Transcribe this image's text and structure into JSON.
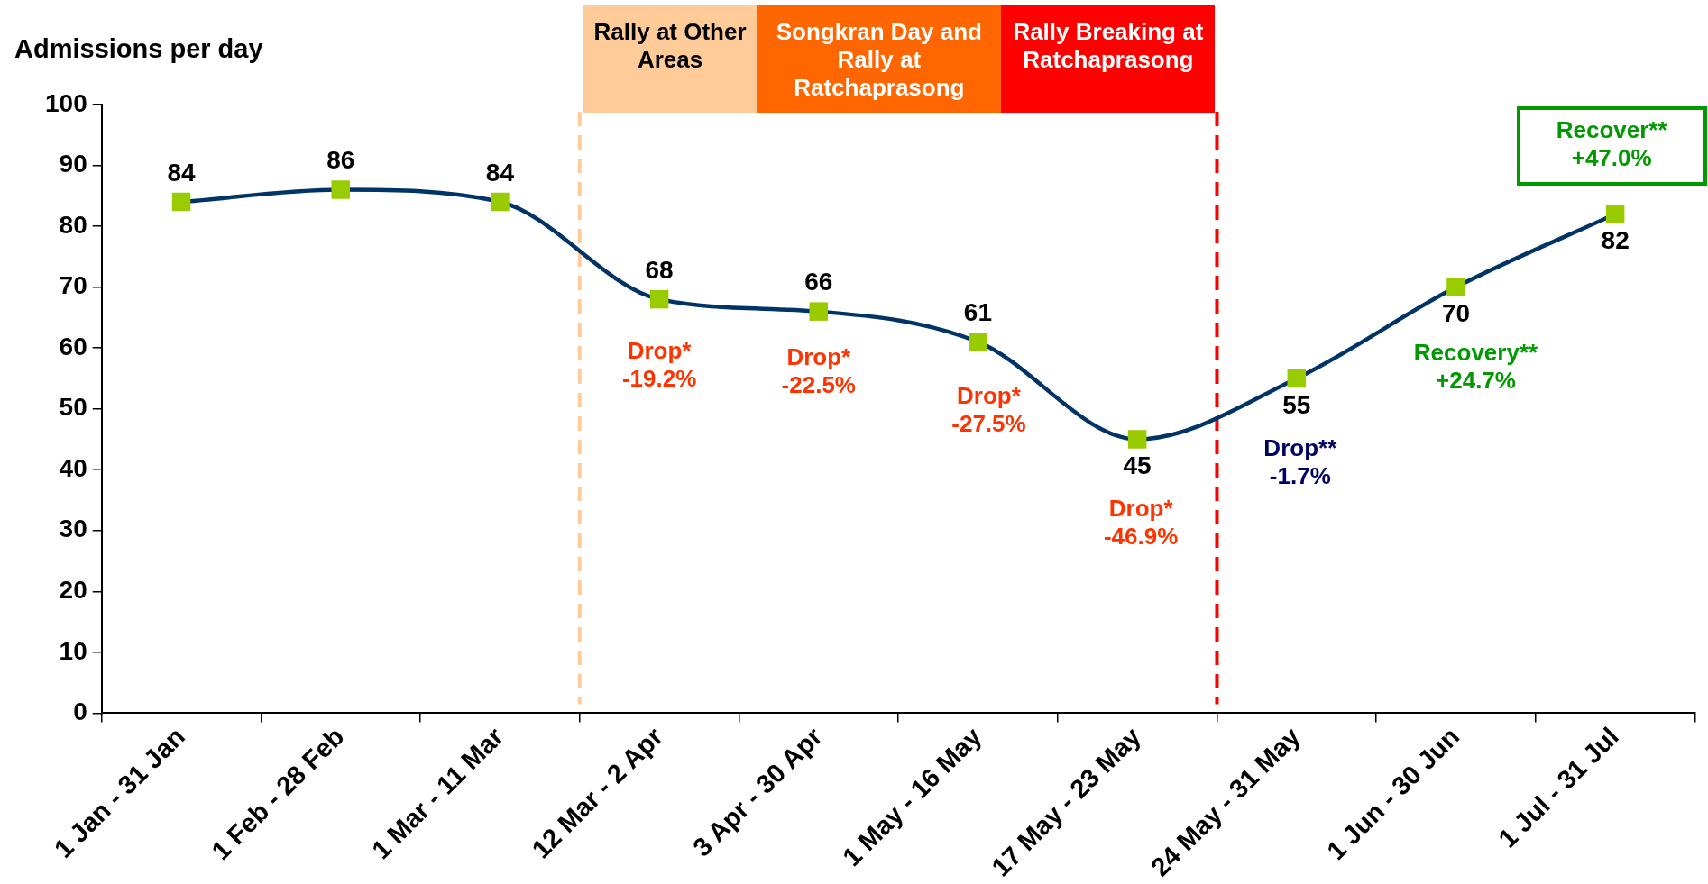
{
  "chart_data": {
    "type": "line",
    "ylabel": "Admissions per day",
    "categories": [
      "1 Jan - 31 Jan",
      "1 Feb - 28 Feb",
      "1 Mar - 11 Mar",
      "12 Mar - 2 Apr",
      "3 Apr - 30 Apr",
      "1 May - 16 May",
      "17 May - 23 May",
      "24 May - 31 May",
      "1 Jun - 30 Jun",
      "1 Jul - 31 Jul"
    ],
    "series": [
      {
        "color": "#003366",
        "colors": [
          "#99cc00",
          "#99cc00",
          "#99cc00",
          "#99cc00",
          "#99cc00",
          "#99cc00",
          "#99cc00",
          "#99cc00",
          "#99cc00",
          "#99cc00"
        ],
        "values": [
          84,
          86,
          84,
          68,
          66,
          61,
          45,
          55,
          70,
          82
        ]
      }
    ],
    "ylim": [
      0,
      100
    ],
    "yticks": [
      0,
      10,
      20,
      30,
      40,
      50,
      60,
      70,
      80,
      90,
      100
    ],
    "marker": "square",
    "line_style": "solid",
    "data_labels": true,
    "ref_lines": [
      {
        "axis": "x",
        "value": "12 Mar - 2 Apr",
        "color": "#ffcc99",
        "line_style": "dashed"
      },
      {
        "axis": "x",
        "value": "24 May - 31 May",
        "color": "#ff0000",
        "line_style": "dashed"
      }
    ],
    "annotations": [
      "Rally at Other Areas",
      "Songkran Day and Rally at Ratchaprasong",
      "Rally Breaking at Ratchaprasong",
      {
        "text": "Drop*\n-19.2%",
        "x": "12 Mar - 2 Apr",
        "y": 68
      },
      {
        "text": "Drop*\n-22.5%",
        "x": "3 Apr - 30 Apr",
        "y": 66
      },
      {
        "text": "Drop*\n-27.5%",
        "x": "1 May - 16 May",
        "y": 61
      },
      {
        "text": "Drop*\n-46.9%",
        "x": "17 May - 23 May",
        "y": 45
      },
      {
        "text": "Drop**\n-1.7%",
        "x": "24 May - 31 May",
        "y": 55
      },
      {
        "text": "Recovery**\n+24.7%",
        "x": "1 Jun - 30 Jun",
        "y": 70
      },
      {
        "text": "Recover**\n+47.0%",
        "x": "1 Jul - 31 Jul",
        "y": 82
      }
    ]
  }
}
